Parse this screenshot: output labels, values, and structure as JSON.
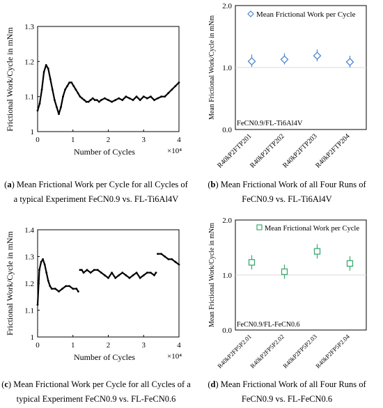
{
  "captions": [
    {
      "letter": "a",
      "text": "Mean Frictional Work per Cycle for all Cycles of a typical Experiment FeCN0.9 vs. FL-Ti6Al4V"
    },
    {
      "letter": "b",
      "text": "Mean Frictional Work of all Four Runs of FeCN0.9 vs. FL-Ti6Al4V"
    },
    {
      "letter": "c",
      "text": "Mean Frictional Work per Cycle for all Cycles of a typical Experiment FeCN0.9 vs. FL-FeCN0.6"
    },
    {
      "letter": "d",
      "text": "Mean Frictional Work of all Four Runs of FeCN0.9 vs. FL-FeCN0.6"
    }
  ],
  "chart_data": [
    {
      "id": "a",
      "type": "scatter",
      "title": "",
      "xlabel": "Number of Cycles",
      "ylabel": "Frictional Work/Cycle in mNm",
      "x_multiplier": "×10⁴",
      "xlim": [
        0,
        40000
      ],
      "ylim": [
        1.0,
        1.3
      ],
      "xticks": [
        "0",
        "1",
        "2",
        "3",
        "4"
      ],
      "yticks": [
        "1",
        "1.1",
        "1.2",
        "1.3"
      ],
      "color": "#000000",
      "x": [
        0,
        600,
        1200,
        1800,
        2400,
        3000,
        3600,
        4200,
        4800,
        5400,
        6000,
        6600,
        7200,
        7800,
        8400,
        9000,
        9600,
        10200,
        10800,
        11400,
        12000,
        12600,
        13200,
        13800,
        14400,
        15000,
        15600,
        16200,
        16800,
        17400,
        18000,
        19000,
        20000,
        21000,
        22000,
        23000,
        24000,
        25000,
        26000,
        27000,
        28000,
        29000,
        30000,
        31000,
        32000,
        33000,
        34000,
        35000,
        36000,
        37000,
        38000,
        39000,
        40000
      ],
      "y": [
        1.06,
        1.08,
        1.12,
        1.17,
        1.19,
        1.18,
        1.15,
        1.12,
        1.09,
        1.07,
        1.05,
        1.07,
        1.1,
        1.12,
        1.13,
        1.14,
        1.14,
        1.13,
        1.12,
        1.11,
        1.1,
        1.095,
        1.09,
        1.085,
        1.085,
        1.09,
        1.095,
        1.09,
        1.09,
        1.085,
        1.09,
        1.095,
        1.09,
        1.085,
        1.09,
        1.095,
        1.09,
        1.1,
        1.095,
        1.09,
        1.1,
        1.09,
        1.1,
        1.095,
        1.1,
        1.09,
        1.095,
        1.1,
        1.1,
        1.11,
        1.12,
        1.13,
        1.14
      ]
    },
    {
      "id": "b",
      "type": "scatter",
      "title": "",
      "xlabel": "",
      "ylabel": "Mean Frictional Work/Cycle in mNm",
      "legend": "Mean Frictional Work per Cycle",
      "annotation": "FeCN0.9/FL-Ti6Al4V",
      "marker": "diamond",
      "color": "#4a86cf",
      "ylim": [
        0.0,
        2.0
      ],
      "yticks": [
        "0.0",
        "1.0",
        "2.0"
      ],
      "categories": [
        "R40kP2FTP201",
        "R40kP2FTP202",
        "R40kP2FTP203",
        "R40kP2FTP204"
      ],
      "values": [
        1.1,
        1.13,
        1.19,
        1.09
      ],
      "err_low": [
        1.01,
        1.05,
        1.1,
        1.0
      ],
      "err_high": [
        1.21,
        1.23,
        1.29,
        1.19
      ]
    },
    {
      "id": "c",
      "type": "scatter",
      "title": "",
      "xlabel": "Number of Cycles",
      "ylabel": "Frictional Work/Cycle in mNm",
      "x_multiplier": "×10⁴",
      "xlim": [
        0,
        40000
      ],
      "ylim": [
        1.0,
        1.4
      ],
      "xticks": [
        "0",
        "1",
        "2",
        "3",
        "4"
      ],
      "yticks": [
        "1",
        "1.1",
        "1.2",
        "1.3",
        "1.4"
      ],
      "color": "#000000",
      "x": [
        0,
        500,
        1000,
        1500,
        2000,
        2500,
        3000,
        3500,
        4000,
        5000,
        6000,
        7000,
        8000,
        9000,
        10000,
        11000,
        11500,
        12000,
        12500,
        13000,
        14000,
        15000,
        16000,
        17000,
        18000,
        19000,
        20000,
        21000,
        22000,
        23000,
        24000,
        25000,
        26000,
        27000,
        28000,
        29000,
        30000,
        31000,
        32000,
        33000,
        33500,
        34000,
        35000,
        36000,
        37000,
        38000,
        39000,
        40000
      ],
      "y": [
        1.12,
        1.25,
        1.28,
        1.29,
        1.27,
        1.24,
        1.21,
        1.19,
        1.18,
        1.18,
        1.17,
        1.18,
        1.19,
        1.19,
        1.18,
        1.18,
        1.17,
        1.25,
        1.25,
        1.24,
        1.25,
        1.24,
        1.25,
        1.25,
        1.24,
        1.23,
        1.22,
        1.24,
        1.22,
        1.23,
        1.24,
        1.23,
        1.22,
        1.23,
        1.24,
        1.22,
        1.23,
        1.24,
        1.24,
        1.23,
        1.24,
        1.31,
        1.31,
        1.3,
        1.29,
        1.29,
        1.28,
        1.27
      ]
    },
    {
      "id": "d",
      "type": "scatter",
      "title": "",
      "xlabel": "",
      "ylabel": "Mean Frictional Work/Cycle in mNm",
      "legend": "Mean Frictional Work per Cycle",
      "annotation": "FeCN0.9/FL-FeCN0.6",
      "marker": "square",
      "color": "#3aa870",
      "ylim": [
        0.0,
        2.0
      ],
      "yticks": [
        "0.0",
        "1.0",
        "2.0"
      ],
      "categories": [
        "R40kP2FP5P2.01",
        "R40kP2FP5P2.02",
        "R40kP2FP5P2.03",
        "R40kP2FP5P2.04"
      ],
      "values": [
        1.23,
        1.06,
        1.43,
        1.21
      ],
      "err_low": [
        1.1,
        0.93,
        1.3,
        1.08
      ],
      "err_high": [
        1.36,
        1.19,
        1.56,
        1.34
      ]
    }
  ]
}
